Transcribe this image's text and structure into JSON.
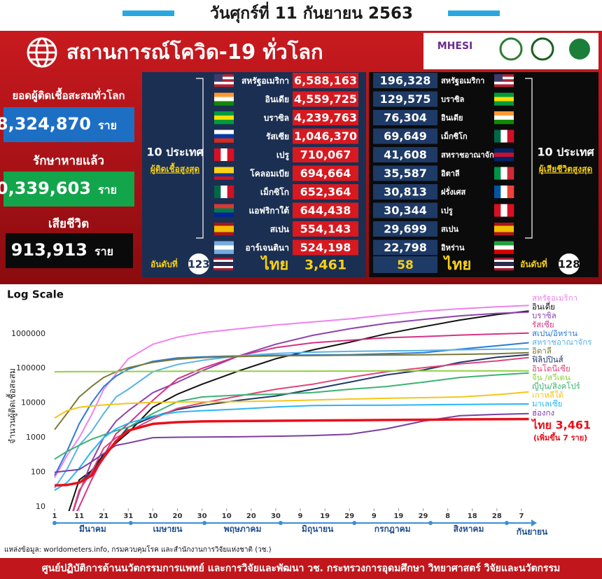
{
  "header": {
    "date": "วันศุกร์ที่ 11 กันยายน 2563"
  },
  "banner": {
    "title": "สถานการณ์โควิด-19 ทั่วโลก",
    "logo": "MHESI"
  },
  "summary": {
    "total_label": "ยอดผู้ติดเชื้อสะสมทั่วโลก",
    "total": "28,324,870",
    "recovered_label": "รักษาหายแล้ว",
    "recovered": "20,339,603",
    "deaths_label": "เสียชีวิต",
    "deaths": "913,913",
    "unit": "ราย"
  },
  "cases_table": {
    "heading": "10 ประเทศ",
    "subheading": "ผู้ติดเชื้อสูงสุด",
    "rows": [
      [
        "สหรัฐอเมริกา",
        "6,588,163"
      ],
      [
        "อินเดีย",
        "4,559,725"
      ],
      [
        "บราซิล",
        "4,239,763"
      ],
      [
        "รัสเซีย",
        "1,046,370"
      ],
      [
        "เปรู",
        "710,067"
      ],
      [
        "โคลอมเบีย",
        "694,664"
      ],
      [
        "เม็กซิโก",
        "652,364"
      ],
      [
        "แอฟริกาใต้",
        "644,438"
      ],
      [
        "สเปน",
        "554,143"
      ],
      [
        "อาร์เจนตินา",
        "524,198"
      ]
    ],
    "thai_rank_label": "อันดับที่",
    "thai_rank": "123",
    "thai_name": "ไทย",
    "thai_value": "3,461"
  },
  "deaths_table": {
    "heading": "10 ประเทศ",
    "subheading": "ผู้เสียชีวิตสูงสุด",
    "rows": [
      [
        "196,328",
        "สหรัฐอเมริกา"
      ],
      [
        "129,575",
        "บราซิล"
      ],
      [
        "76,304",
        "อินเดีย"
      ],
      [
        "69,649",
        "เม็กซิโก"
      ],
      [
        "41,608",
        "สหราชอาณาจักร"
      ],
      [
        "35,587",
        "อิตาลี"
      ],
      [
        "30,813",
        "ฝรั่งเศส"
      ],
      [
        "30,344",
        "เปรู"
      ],
      [
        "29,699",
        "สเปน"
      ],
      [
        "22,798",
        "อิหร่าน"
      ]
    ],
    "thai_value": "58",
    "thai_name": "ไทย",
    "thai_rank_label": "อันดับที่",
    "thai_rank": "128"
  },
  "chart_data": {
    "type": "line",
    "title": "Log Scale",
    "y_label": "จำนวนผู้ติดเชื้อสะสม",
    "log_scale": true,
    "grid": false,
    "xlim": [
      0,
      194
    ],
    "xticks": [
      {
        "value": 0,
        "label": "1"
      },
      {
        "value": 10,
        "label": "11"
      },
      {
        "value": 20,
        "label": "21"
      },
      {
        "value": 30,
        "label": "31"
      },
      {
        "value": 40,
        "label": "10"
      },
      {
        "value": 50,
        "label": "20"
      },
      {
        "value": 60,
        "label": "30"
      },
      {
        "value": 70,
        "label": "10"
      },
      {
        "value": 80,
        "label": "20"
      },
      {
        "value": 90,
        "label": "30"
      },
      {
        "value": 100,
        "label": "9"
      },
      {
        "value": 110,
        "label": "19"
      },
      {
        "value": 120,
        "label": "29"
      },
      {
        "value": 130,
        "label": "9"
      },
      {
        "value": 140,
        "label": "19"
      },
      {
        "value": 150,
        "label": "29"
      },
      {
        "value": 160,
        "label": "8"
      },
      {
        "value": 170,
        "label": "18"
      },
      {
        "value": 180,
        "label": "28"
      },
      {
        "value": 190,
        "label": "7"
      }
    ],
    "months": [
      "มีนาคม",
      "เมษายน",
      "พฤษภาคม",
      "มิถุนายน",
      "กรกฎาคม",
      "สิงหาคม",
      "กันยายน"
    ],
    "ylim": [
      10,
      7000000
    ],
    "yticks": [
      10,
      100,
      1000,
      10000,
      100000,
      1000000
    ],
    "x": [
      0,
      5,
      10,
      15,
      20,
      25,
      30,
      40,
      50,
      60,
      75,
      90,
      105,
      120,
      135,
      150,
      165,
      180,
      193
    ],
    "series": [
      {
        "name": "สหรัฐอเมริกา",
        "color": "#ee82ee",
        "values": [
          70,
          300,
          1000,
          4500,
          25000,
          70000,
          190000,
          500000,
          800000,
          1070000,
          1400000,
          1800000,
          2200000,
          2700000,
          3500000,
          4500000,
          5300000,
          6000000,
          6588163
        ]
      },
      {
        "name": "อินเดีย",
        "color": "#111111",
        "values": [
          3,
          5,
          60,
          110,
          330,
          700,
          1400,
          7600,
          18000,
          35000,
          85000,
          190000,
          340000,
          570000,
          1000000,
          1600000,
          2500000,
          3600000,
          4559725
        ]
      },
      {
        "name": "บราซิล",
        "color": "#8e44ad",
        "values": [
          null,
          2,
          25,
          200,
          1000,
          3000,
          6000,
          20000,
          40000,
          85000,
          230000,
          500000,
          900000,
          1400000,
          2000000,
          2600000,
          3300000,
          3900000,
          4239763
        ]
      },
      {
        "name": "รัสเซีย",
        "color": "#d63384",
        "values": [
          null,
          2,
          10,
          60,
          300,
          1300,
          2500,
          12000,
          50000,
          100000,
          230000,
          400000,
          550000,
          650000,
          770000,
          830000,
          920000,
          990000,
          1046370
        ]
      },
      {
        "name": "สเปน/อิหร่าน",
        "color": "#2b7bd8",
        "values": [
          80,
          400,
          2500,
          10000,
          30000,
          60000,
          95000,
          160000,
          200000,
          215000,
          230000,
          240000,
          245000,
          250000,
          265000,
          285000,
          360000,
          450000,
          554143
        ]
      },
      {
        "name": "สหราชอาณาจักร",
        "color": "#5ab4e5",
        "values": [
          35,
          120,
          600,
          1500,
          5000,
          15000,
          25000,
          80000,
          130000,
          170000,
          230000,
          270000,
          295000,
          310000,
          320000,
          330000,
          345000,
          360000,
          365000
        ]
      },
      {
        "name": "อิตาลี",
        "color": "#7a7a3a",
        "values": [
          1700,
          5000,
          15000,
          30000,
          55000,
          80000,
          105000,
          150000,
          185000,
          205000,
          220000,
          230000,
          235000,
          240000,
          244000,
          248000,
          255000,
          265000,
          286000
        ]
      },
      {
        "name": "ฟิลิปปินส์",
        "color": "#1f3a6b",
        "values": [
          null,
          null,
          50,
          100,
          300,
          800,
          2000,
          4000,
          6500,
          8500,
          12000,
          16000,
          25000,
          40000,
          65000,
          90000,
          150000,
          210000,
          250000
        ]
      },
      {
        "name": "อินโดนีเซีย",
        "color": "#e0457b",
        "values": [
          null,
          2,
          30,
          100,
          500,
          1000,
          1500,
          3500,
          7000,
          10000,
          16000,
          25000,
          35000,
          55000,
          80000,
          105000,
          135000,
          165000,
          207000
        ]
      },
      {
        "name": "จีน /สวีเดน",
        "color": "#90d040",
        "values": [
          80000,
          80500,
          80800,
          81000,
          81200,
          81400,
          81500,
          82000,
          82800,
          82900,
          83000,
          83000,
          83500,
          84000,
          84500,
          84800,
          85000,
          85000,
          85100
        ]
      },
      {
        "name": "ญี่ปุ่น/สิงคโปร์",
        "color": "#3cb371",
        "values": [
          240,
          400,
          600,
          900,
          1200,
          1600,
          2000,
          5000,
          11000,
          15000,
          17000,
          18000,
          20000,
          25000,
          30000,
          40000,
          55000,
          65000,
          74000
        ]
      },
      {
        "name": "เกาหลีใต้",
        "color": "#f5c518",
        "values": [
          3700,
          6000,
          7500,
          8200,
          8800,
          9300,
          9700,
          10400,
          10700,
          10800,
          11000,
          11500,
          12200,
          13000,
          13700,
          14300,
          15000,
          17500,
          21000
        ]
      },
      {
        "name": "มาเลเซีย",
        "color": "#29b6f6",
        "values": [
          30,
          50,
          130,
          400,
          1000,
          1800,
          2600,
          4200,
          5500,
          6000,
          6700,
          7700,
          8500,
          8600,
          8700,
          8900,
          9100,
          9300,
          9400
        ]
      },
      {
        "name": "ฮ่องกง",
        "color": "#7b3fa0",
        "values": [
          100,
          110,
          120,
          200,
          350,
          600,
          700,
          1000,
          1030,
          1040,
          1060,
          1100,
          1150,
          1250,
          1800,
          3000,
          4300,
          4700,
          4950
        ]
      },
      {
        "name": "ไทย 3,461",
        "color": "#e8101a",
        "values": [
          42,
          43,
          50,
          80,
          270,
          800,
          1600,
          2500,
          2800,
          2950,
          3020,
          3080,
          3135,
          3170,
          3230,
          3300,
          3370,
          3410,
          3461
        ]
      }
    ],
    "annotation": "(เพิ่มขึ้น 7 ราย)"
  },
  "footer": {
    "source": "แหล่งข้อมูล: worldometers.info, กรมควบคุมโรค และสำนักงานการวิจัยแห่งชาติ (วช.)",
    "org": "ศูนย์ปฏิบัติการด้านนวัตกรรมการแพทย์ และการวิจัยและพัฒนา วช.   กระทรวงการอุดมศึกษา วิทยาศาสตร์ วิจัยและนวัตกรรม"
  }
}
